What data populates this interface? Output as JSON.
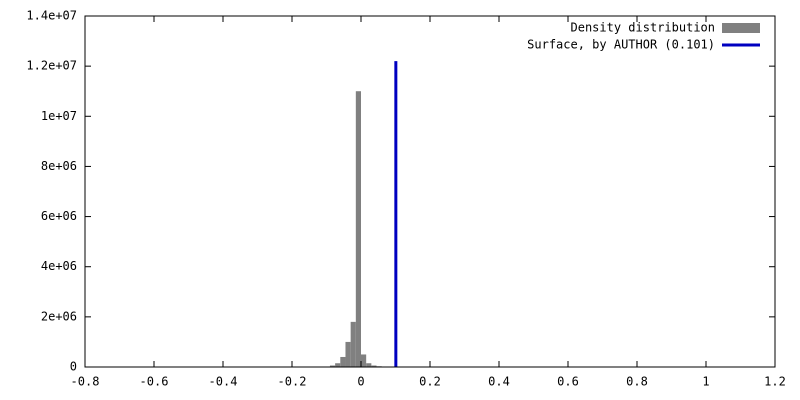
{
  "chart_data": {
    "type": "histogram",
    "bins": [
      -0.105,
      -0.09,
      -0.075,
      -0.06,
      -0.045,
      -0.03,
      -0.015,
      0,
      0.015,
      0.03,
      0.045,
      0.06,
      0.075,
      0.09,
      0.105
    ],
    "series": [
      {
        "name": "Density distribution",
        "color": "#808080",
        "values": [
          20000,
          60000,
          150000,
          400000,
          1000000,
          1800000,
          11000000,
          500000,
          150000,
          60000,
          30000,
          20000,
          10000,
          5000
        ]
      }
    ],
    "lines": [
      {
        "name": "Surface, by AUTHOR (0.101)",
        "color": "#0000c0",
        "x": 0.101,
        "y": [
          0,
          12200000
        ]
      }
    ],
    "xlim": [
      -0.8,
      1.2
    ],
    "ylim": [
      0,
      14000000
    ],
    "xticks": [
      -0.8,
      -0.6,
      -0.4,
      -0.2,
      0,
      0.2,
      0.4,
      0.6,
      0.8,
      1,
      1.2
    ],
    "yticks": [
      0,
      {
        "value": 2000000,
        "label": "2e+06"
      },
      {
        "value": 4000000,
        "label": "4e+06"
      },
      {
        "value": 6000000,
        "label": "6e+06"
      },
      {
        "value": 8000000,
        "label": "8e+06"
      },
      {
        "value": 10000000,
        "label": "1e+07"
      },
      {
        "value": 12000000,
        "label": "1.2e+07"
      },
      {
        "value": 14000000,
        "label": "1.4e+07"
      }
    ],
    "legend": "top-right"
  }
}
